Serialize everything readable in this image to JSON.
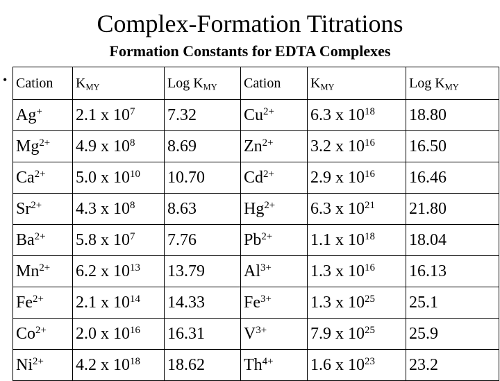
{
  "title": "Complex-Formation Titrations",
  "subtitle": "Formation Constants for EDTA Complexes",
  "bullet": "•",
  "headers": [
    {
      "base": "Cation",
      "sub": ""
    },
    {
      "base": "K",
      "sub": "MY"
    },
    {
      "base": "Log K",
      "sub": "MY"
    },
    {
      "base": "Cation",
      "sub": ""
    },
    {
      "base": "K",
      "sub": "MY"
    },
    {
      "base": "Log K",
      "sub": "MY"
    }
  ],
  "rows": [
    {
      "c1": "Ag",
      "c1c": "+",
      "k1": "2.1 x 10",
      "k1e": "7",
      "l1": "7.32",
      "c2": "Cu",
      "c2c": "2+",
      "k2": "6.3 x 10",
      "k2e": "18",
      "l2": "18.80"
    },
    {
      "c1": "Mg",
      "c1c": "2+",
      "k1": "4.9 x 10",
      "k1e": "8",
      "l1": "8.69",
      "c2": "Zn",
      "c2c": "2+",
      "k2": "3.2 x 10",
      "k2e": "16",
      "l2": "16.50"
    },
    {
      "c1": "Ca",
      "c1c": "2+",
      "k1": "5.0 x 10",
      "k1e": "10",
      "l1": "10.70",
      "c2": "Cd",
      "c2c": "2+",
      "k2": "2.9 x 10",
      "k2e": "16",
      "l2": "16.46"
    },
    {
      "c1": "Sr",
      "c1c": "2+",
      "k1": "4.3 x 10",
      "k1e": "8",
      "l1": "8.63",
      "c2": "Hg",
      "c2c": "2+",
      "k2": "6.3 x 10",
      "k2e": "21",
      "l2": "21.80"
    },
    {
      "c1": "Ba",
      "c1c": "2+",
      "k1": "5.8 x 10",
      "k1e": "7",
      "l1": "7.76",
      "c2": "Pb",
      "c2c": "2+",
      "k2": "1.1 x 10",
      "k2e": "18",
      "l2": "18.04"
    },
    {
      "c1": "Mn",
      "c1c": "2+",
      "k1": "6.2 x 10",
      "k1e": "13",
      "l1": "13.79",
      "c2": "Al",
      "c2c": "3+",
      "k2": "1.3 x 10",
      "k2e": "16",
      "l2": "16.13"
    },
    {
      "c1": "Fe",
      "c1c": "2+",
      "k1": "2.1 x 10",
      "k1e": "14",
      "l1": "14.33",
      "c2": "Fe",
      "c2c": "3+",
      "k2": "1.3 x 10",
      "k2e": "25",
      "l2": "25.1"
    },
    {
      "c1": "Co",
      "c1c": "2+",
      "k1": "2.0 x 10",
      "k1e": "16",
      "l1": "16.31",
      "c2": "V",
      "c2c": "3+",
      "k2": "7.9 x 10",
      "k2e": "25",
      "l2": "25.9"
    },
    {
      "c1": "Ni",
      "c1c": "2+",
      "k1": "4.2 x 10",
      "k1e": "18",
      "l1": "18.62",
      "c2": "Th",
      "c2c": "4+",
      "k2": "1.6 x 10",
      "k2e": "23",
      "l2": "23.2"
    }
  ]
}
